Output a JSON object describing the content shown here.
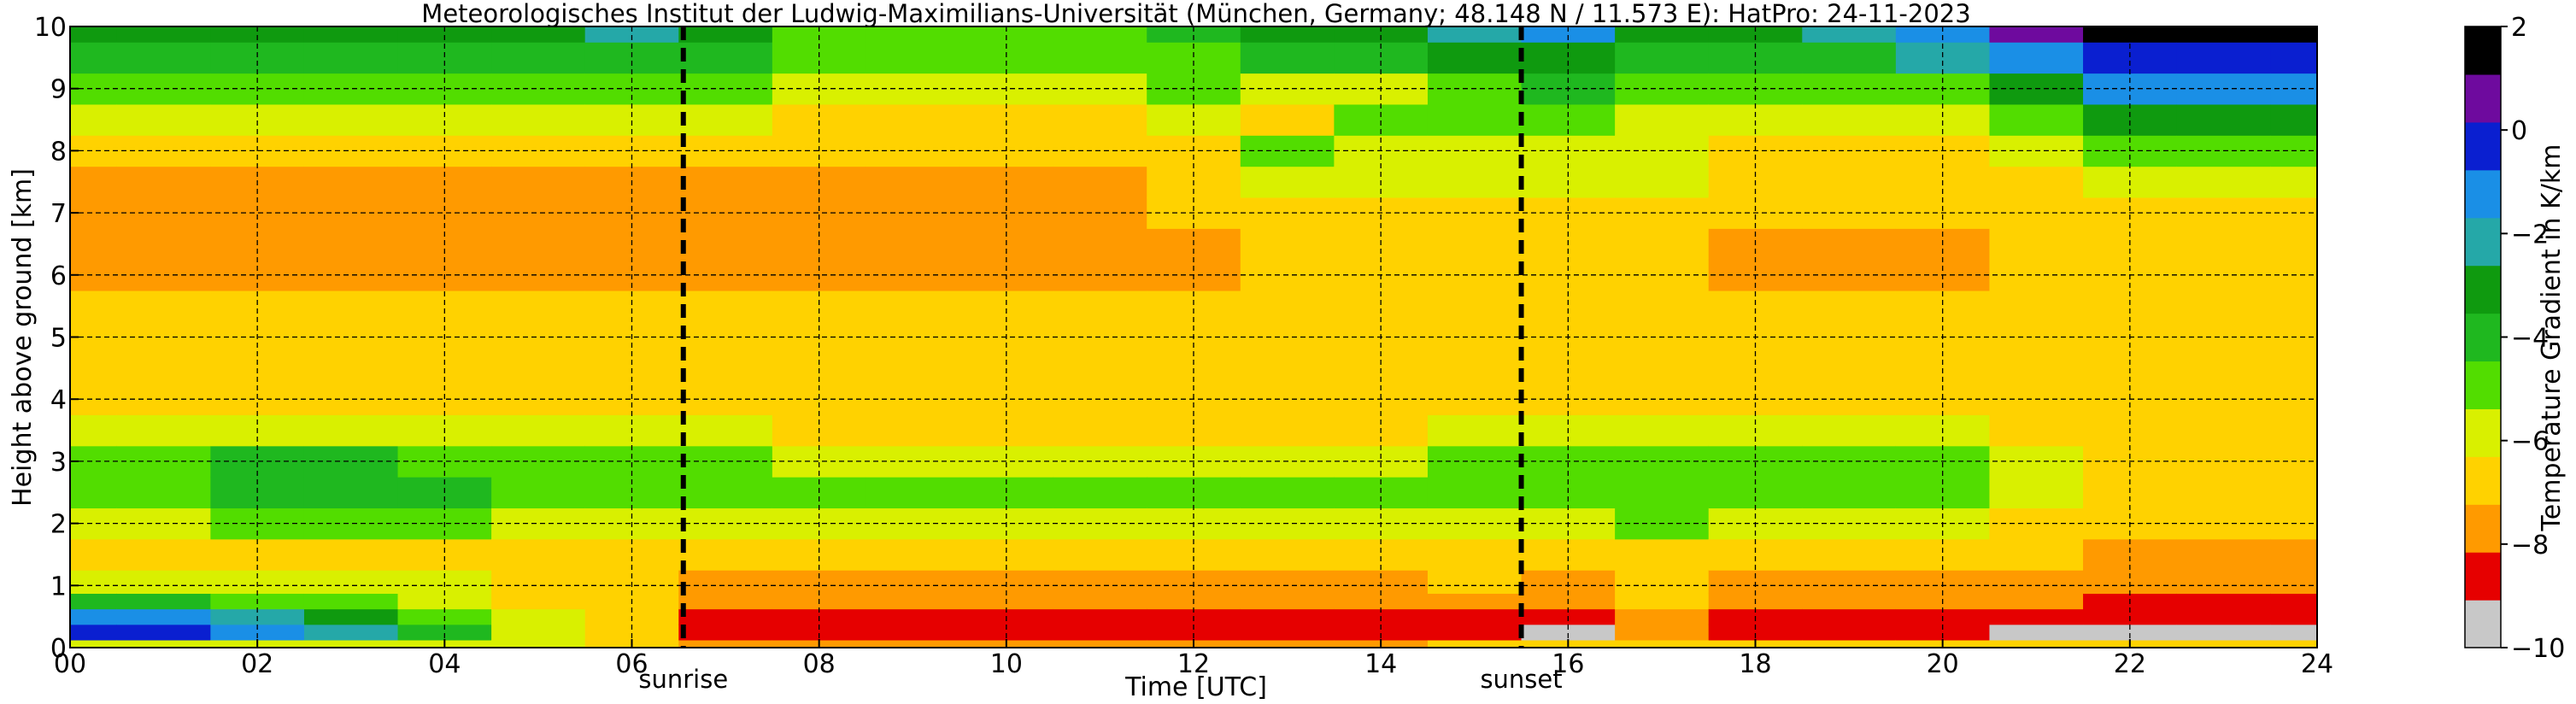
{
  "chart_data": {
    "type": "heatmap",
    "title": "Meteorologisches Institut der Ludwig-Maximilians-Universität (München, Germany; 48.148 N / 11.573 E):    HatPro: 24-11-2023",
    "xlabel": "Time [UTC]",
    "ylabel": "Height above ground [km]",
    "xlim": [
      0,
      24
    ],
    "ylim": [
      0,
      10
    ],
    "x_ticks": [
      0,
      2,
      4,
      6,
      8,
      10,
      12,
      14,
      16,
      18,
      20,
      22,
      24
    ],
    "x_tick_labels": [
      "00",
      "02",
      "04",
      "06",
      "08",
      "10",
      "12",
      "14",
      "16",
      "18",
      "20",
      "22",
      "24"
    ],
    "y_ticks": [
      0,
      1,
      2,
      3,
      4,
      5,
      6,
      7,
      8,
      9,
      10
    ],
    "y_tick_labels": [
      "0",
      "1",
      "2",
      "3",
      "4",
      "5",
      "6",
      "7",
      "8",
      "9",
      "10"
    ],
    "grid": true,
    "colorbar": {
      "label": "Temperature Gradient in K/km",
      "range": [
        -10,
        2
      ],
      "ticks": [
        -10,
        -8,
        -6,
        -4,
        -2,
        0,
        2
      ],
      "tick_labels": [
        "−10",
        "−8",
        "−6",
        "−4",
        "−2",
        "0",
        "2"
      ],
      "colors": [
        "#c8c8c8",
        "#e60000",
        "#ff9a00",
        "#ffd200",
        "#d9f000",
        "#52dd00",
        "#1fb81f",
        "#0f9a0f",
        "#25a8a8",
        "#1a8fe6",
        "#0a1fd0",
        "#6e0a9e",
        "#000000"
      ]
    },
    "markers": [
      {
        "label": "sunrise",
        "x": 6.55
      },
      {
        "label": "sunset",
        "x": 15.5
      }
    ],
    "times": [
      0,
      1,
      2,
      3,
      4,
      5,
      6,
      7,
      8,
      9,
      10,
      11,
      12,
      13,
      14,
      15,
      16,
      17,
      18,
      19,
      20,
      21,
      22,
      23,
      24
    ],
    "heights": [
      0,
      0.25,
      0.5,
      0.75,
      1,
      1.5,
      2,
      2.5,
      3,
      3.5,
      4,
      4.5,
      5,
      5.5,
      6,
      6.5,
      7,
      7.5,
      8,
      8.5,
      9,
      9.5,
      10
    ],
    "values": [
      [
        -6.0,
        0.0,
        -1.0,
        -4.0,
        -6.0,
        -6.5,
        -5.5,
        -4.5,
        -4.5,
        -6.0,
        -6.5,
        -6.8,
        -7.0,
        -7.2,
        -7.5,
        -7.8,
        -8.0,
        -7.8,
        -7.0,
        -6.0,
        -5.0,
        -4.0,
        -3.0
      ],
      [
        -6.0,
        0.0,
        -1.0,
        -4.0,
        -6.0,
        -6.5,
        -5.5,
        -4.5,
        -4.5,
        -6.0,
        -6.5,
        -6.8,
        -7.0,
        -7.2,
        -7.5,
        -7.8,
        -8.0,
        -7.8,
        -7.0,
        -6.0,
        -5.0,
        -4.0,
        -3.0
      ],
      [
        -6.0,
        -1.0,
        -2.0,
        -4.5,
        -6.0,
        -6.5,
        -5.0,
        -4.0,
        -4.2,
        -6.0,
        -6.5,
        -6.8,
        -7.0,
        -7.2,
        -7.5,
        -7.8,
        -8.0,
        -7.8,
        -7.0,
        -6.0,
        -5.0,
        -4.0,
        -3.0
      ],
      [
        -6.0,
        -2.0,
        -3.0,
        -5.0,
        -6.0,
        -6.5,
        -4.8,
        -4.0,
        -4.2,
        -6.0,
        -6.5,
        -6.8,
        -7.0,
        -7.2,
        -7.5,
        -7.8,
        -8.0,
        -7.8,
        -7.0,
        -6.0,
        -5.0,
        -4.0,
        -3.0
      ],
      [
        -5.5,
        -4.0,
        -4.5,
        -5.5,
        -6.2,
        -6.5,
        -5.0,
        -4.2,
        -4.5,
        -6.0,
        -6.5,
        -6.8,
        -7.0,
        -7.2,
        -7.5,
        -7.8,
        -8.0,
        -7.8,
        -7.0,
        -6.0,
        -5.0,
        -4.0,
        -3.0
      ],
      [
        -6.0,
        -5.5,
        -6.0,
        -6.5,
        -6.8,
        -6.8,
        -5.5,
        -4.5,
        -4.8,
        -6.2,
        -6.5,
        -6.8,
        -7.0,
        -7.2,
        -7.5,
        -7.8,
        -7.8,
        -7.6,
        -7.0,
        -6.0,
        -5.0,
        -4.0,
        -3.0
      ],
      [
        -6.5,
        -6.5,
        -6.8,
        -7.0,
        -7.0,
        -7.0,
        -5.8,
        -4.8,
        -5.0,
        -6.3,
        -6.6,
        -6.8,
        -7.0,
        -7.2,
        -7.5,
        -7.7,
        -7.7,
        -7.5,
        -7.0,
        -6.0,
        -5.0,
        -3.8,
        -2.5
      ],
      [
        -7.5,
        -8.8,
        -8.2,
        -7.5,
        -7.3,
        -7.2,
        -6.0,
        -5.0,
        -5.2,
        -6.3,
        -6.6,
        -6.8,
        -7.0,
        -7.2,
        -7.4,
        -7.5,
        -7.5,
        -7.4,
        -7.0,
        -6.2,
        -5.2,
        -4.0,
        -3.0
      ],
      [
        -7.5,
        -9.0,
        -8.8,
        -7.8,
        -7.3,
        -7.2,
        -6.2,
        -5.2,
        -5.5,
        -6.4,
        -6.6,
        -6.8,
        -7.0,
        -7.2,
        -7.4,
        -7.5,
        -7.5,
        -7.4,
        -7.0,
        -6.5,
        -5.8,
        -5.0,
        -4.5
      ],
      [
        -7.5,
        -9.0,
        -8.8,
        -7.8,
        -7.3,
        -7.2,
        -6.2,
        -5.2,
        -5.5,
        -6.4,
        -6.6,
        -6.8,
        -7.0,
        -7.2,
        -7.4,
        -7.5,
        -7.5,
        -7.4,
        -7.0,
        -6.5,
        -5.8,
        -5.0,
        -4.5
      ],
      [
        -7.5,
        -9.0,
        -8.8,
        -7.8,
        -7.3,
        -7.2,
        -6.2,
        -5.2,
        -5.5,
        -6.4,
        -6.6,
        -6.8,
        -7.0,
        -7.2,
        -7.4,
        -7.5,
        -7.5,
        -7.4,
        -7.0,
        -6.5,
        -5.8,
        -5.0,
        -4.5
      ],
      [
        -7.5,
        -9.0,
        -8.8,
        -7.8,
        -7.3,
        -7.2,
        -6.2,
        -5.2,
        -5.5,
        -6.4,
        -6.6,
        -6.8,
        -7.0,
        -7.2,
        -7.4,
        -7.5,
        -7.5,
        -7.4,
        -7.0,
        -6.5,
        -5.8,
        -5.0,
        -4.5
      ],
      [
        -7.5,
        -9.0,
        -8.8,
        -7.8,
        -7.3,
        -7.2,
        -6.2,
        -5.2,
        -5.5,
        -6.4,
        -6.6,
        -6.8,
        -7.0,
        -7.2,
        -7.3,
        -7.3,
        -7.2,
        -7.0,
        -6.5,
        -5.8,
        -5.0,
        -4.5,
        -4.0
      ],
      [
        -7.5,
        -9.0,
        -8.8,
        -7.8,
        -7.3,
        -7.2,
        -6.2,
        -5.2,
        -5.5,
        -6.4,
        -6.6,
        -6.8,
        -7.0,
        -7.0,
        -7.0,
        -6.8,
        -6.5,
        -6.0,
        -5.0,
        -6.5,
        -5.5,
        -4.0,
        -3.0
      ],
      [
        -7.5,
        -8.8,
        -8.5,
        -7.8,
        -7.3,
        -7.2,
        -6.2,
        -5.2,
        -5.5,
        -6.4,
        -6.6,
        -6.8,
        -7.0,
        -7.0,
        -7.0,
        -6.8,
        -6.5,
        -6.0,
        -5.5,
        -5.0,
        -6.0,
        -4.0,
        -3.0
      ],
      [
        -7.0,
        -8.5,
        -8.2,
        -7.5,
        -7.2,
        -7.0,
        -6.0,
        -5.0,
        -5.2,
        -6.2,
        -6.5,
        -6.8,
        -7.0,
        -7.0,
        -7.0,
        -6.8,
        -6.5,
        -6.0,
        -5.5,
        -5.0,
        -4.5,
        -3.5,
        -2.0
      ],
      [
        -7.0,
        -10.0,
        -8.8,
        -8.0,
        -7.5,
        -7.0,
        -5.8,
        -4.8,
        -5.0,
        -6.0,
        -6.4,
        -6.6,
        -6.8,
        -7.0,
        -7.0,
        -6.8,
        -6.5,
        -6.0,
        -5.5,
        -4.8,
        -4.2,
        -3.5,
        -1.5
      ],
      [
        -6.5,
        -7.5,
        -7.5,
        -7.2,
        -7.0,
        -6.8,
        -5.2,
        -4.5,
        -4.8,
        -6.0,
        -6.4,
        -6.6,
        -6.8,
        -7.0,
        -7.0,
        -6.8,
        -6.5,
        -6.2,
        -6.0,
        -5.5,
        -5.0,
        -4.0,
        -3.0
      ],
      [
        -7.0,
        -8.8,
        -8.5,
        -7.8,
        -7.3,
        -7.2,
        -6.0,
        -5.0,
        -5.2,
        -6.3,
        -6.6,
        -6.8,
        -7.0,
        -7.2,
        -7.3,
        -7.3,
        -7.2,
        -7.0,
        -6.5,
        -5.8,
        -5.0,
        -4.0,
        -3.0
      ],
      [
        -7.0,
        -8.8,
        -8.5,
        -7.8,
        -7.3,
        -7.2,
        -6.0,
        -5.0,
        -5.2,
        -6.3,
        -6.6,
        -6.8,
        -7.0,
        -7.2,
        -7.3,
        -7.3,
        -7.2,
        -7.0,
        -6.5,
        -5.8,
        -5.0,
        -4.0,
        -2.5
      ],
      [
        -7.0,
        -8.8,
        -8.5,
        -7.8,
        -7.3,
        -7.2,
        -6.0,
        -5.0,
        -5.2,
        -6.3,
        -6.6,
        -6.8,
        -7.0,
        -7.2,
        -7.3,
        -7.3,
        -7.2,
        -7.0,
        -6.5,
        -5.8,
        -4.5,
        -2.5,
        -1.0
      ],
      [
        -7.0,
        -10.0,
        -8.5,
        -8.0,
        -7.5,
        -7.0,
        -6.5,
        -6.0,
        -6.0,
        -6.5,
        -6.8,
        -7.0,
        -7.0,
        -7.2,
        -7.2,
        -7.2,
        -7.0,
        -6.8,
        -5.5,
        -4.5,
        -3.0,
        -1.5,
        0.5
      ],
      [
        -7.0,
        -10.0,
        -8.8,
        -8.2,
        -7.8,
        -7.5,
        -7.0,
        -6.8,
        -6.8,
        -6.8,
        -6.9,
        -7.0,
        -7.0,
        -7.0,
        -7.0,
        -7.0,
        -6.8,
        -6.0,
        -4.5,
        -3.0,
        -1.5,
        0.0,
        2.0
      ],
      [
        -7.0,
        -10.0,
        -8.8,
        -8.2,
        -7.8,
        -7.5,
        -7.0,
        -6.8,
        -6.8,
        -6.8,
        -6.9,
        -7.0,
        -7.0,
        -7.0,
        -7.0,
        -7.0,
        -6.8,
        -6.0,
        -4.5,
        -3.0,
        -1.5,
        0.0,
        2.0
      ],
      [
        -7.0,
        -10.0,
        -8.8,
        -8.2,
        -7.8,
        -7.5,
        -7.0,
        -6.8,
        -6.8,
        -6.8,
        -6.9,
        -7.0,
        -7.0,
        -7.0,
        -7.0,
        -7.0,
        -6.8,
        -6.0,
        -4.5,
        -3.0,
        -1.5,
        0.0,
        2.0
      ]
    ]
  }
}
